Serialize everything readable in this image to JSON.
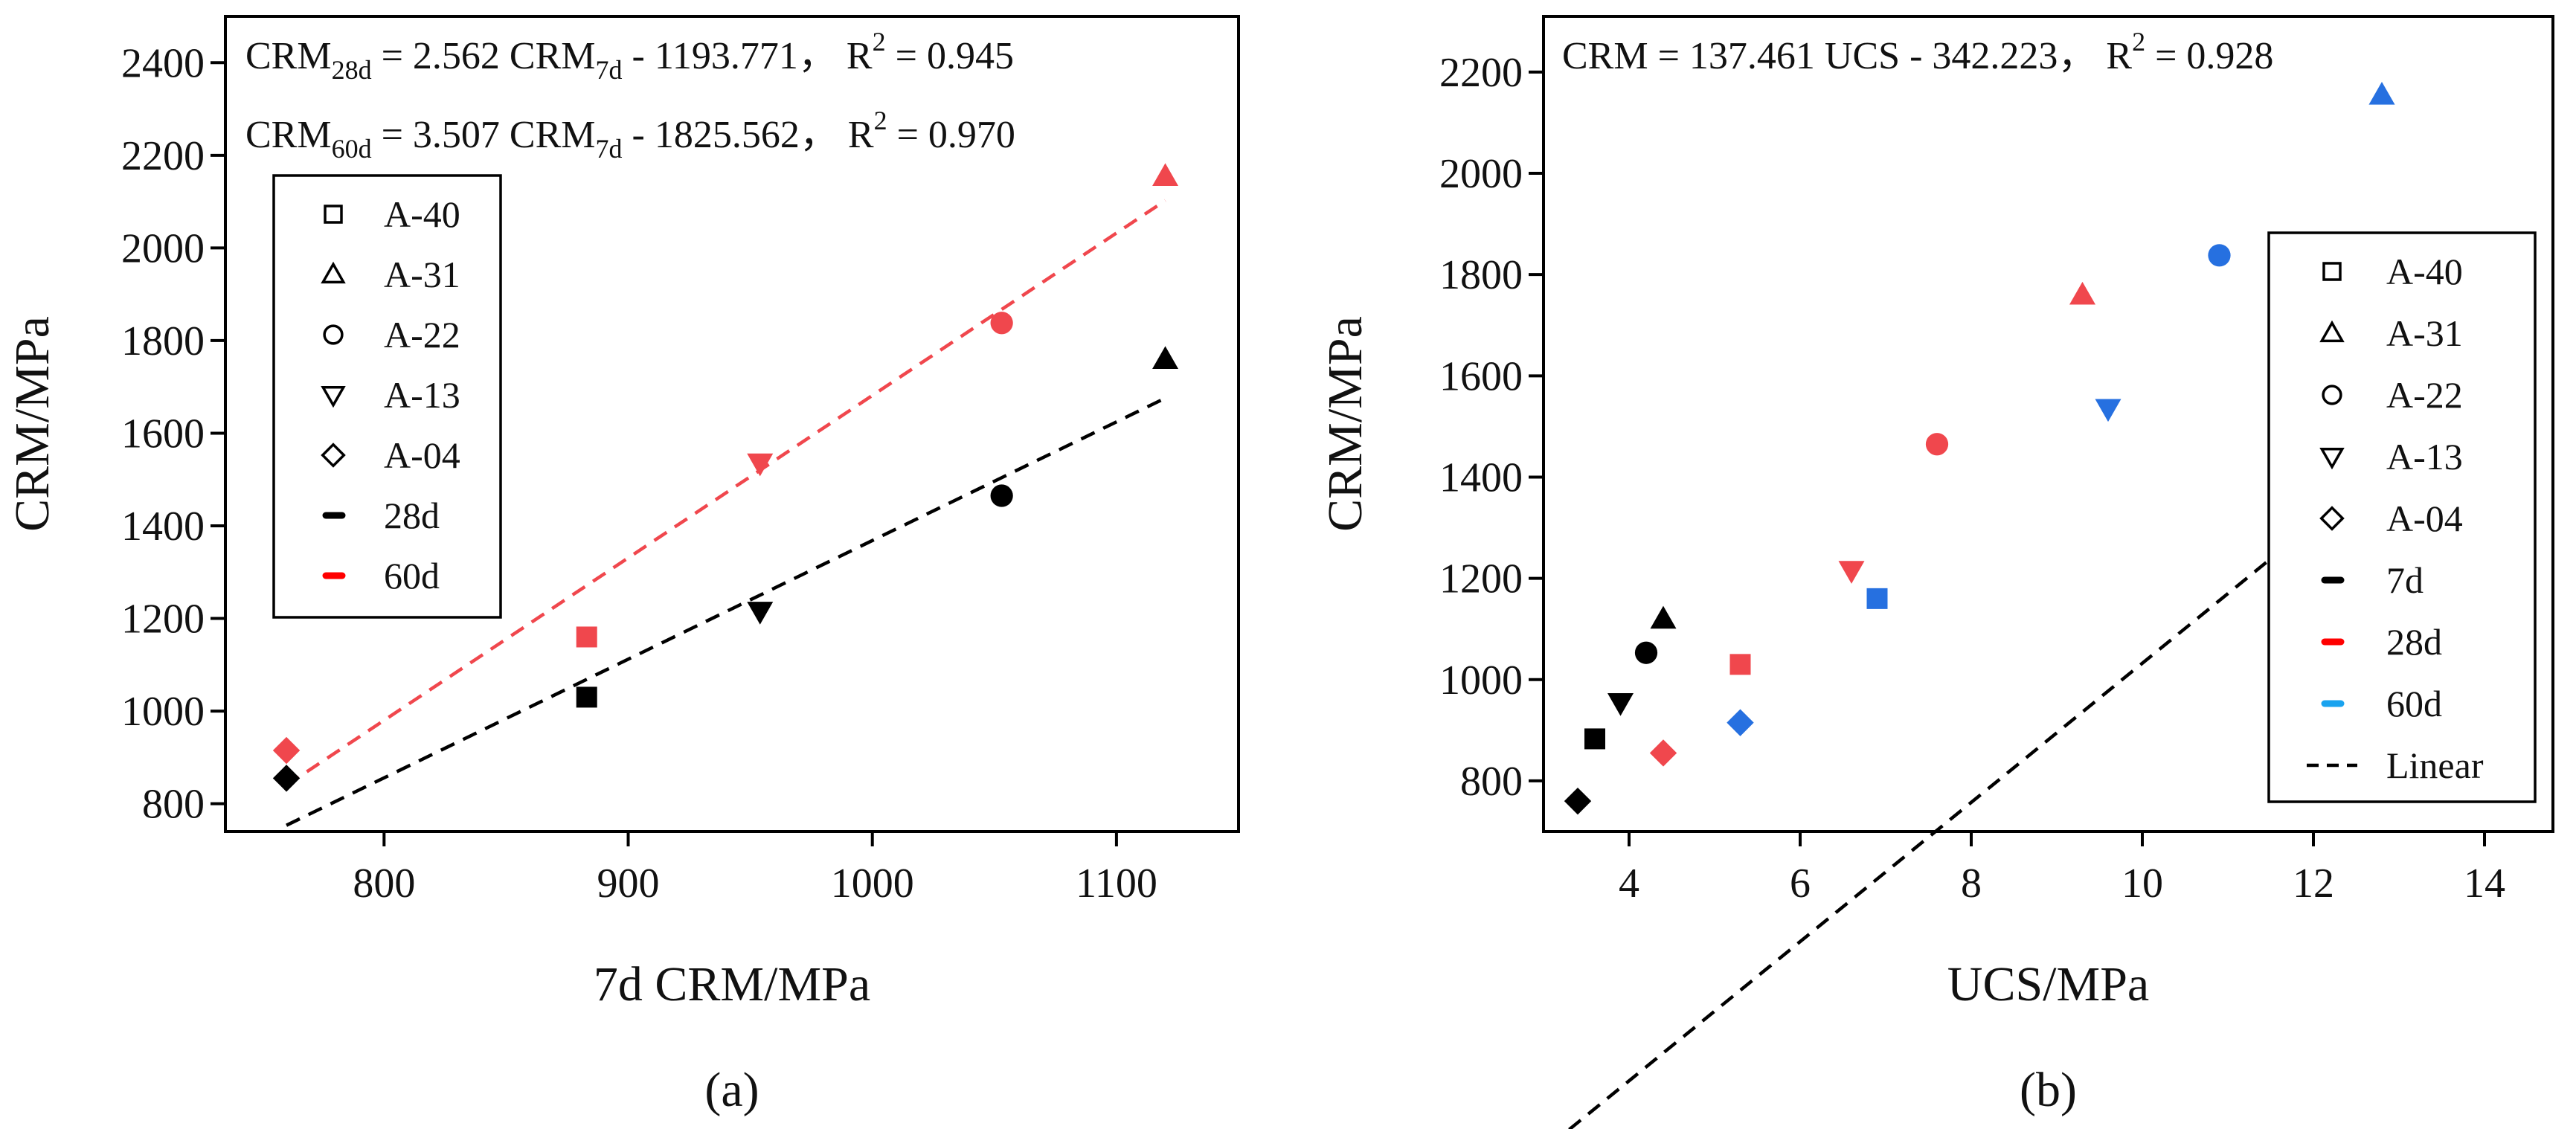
{
  "chart_data": [
    {
      "type": "scatter",
      "panel_label": "(a)",
      "xlabel": "7d CRM/MPa",
      "ylabel": "CRM/MPa",
      "xlim": [
        735,
        1150
      ],
      "ylim": [
        740,
        2500
      ],
      "xticks": [
        800,
        900,
        1000,
        1100
      ],
      "yticks": [
        800,
        1000,
        1200,
        1400,
        1600,
        1800,
        2000,
        2200,
        2400
      ],
      "equations": [
        {
          "main": "CRM",
          "sub": "28d",
          "middle": " = 2.562 CRM",
          "sub2": "7d",
          "tail": " - 1193.771， R",
          "sup": "2",
          "end": " = 0.945"
        },
        {
          "main": "CRM",
          "sub": "60d",
          "middle": " = 3.507 CRM",
          "sub2": "7d",
          "tail": " - 1825.562， R",
          "sup": "2",
          "end": " = 0.970"
        }
      ],
      "legend": {
        "position": "upper-left",
        "items": [
          {
            "label": "A-40",
            "marker": "square"
          },
          {
            "label": "A-31",
            "marker": "triangle-up"
          },
          {
            "label": "A-22",
            "marker": "circle"
          },
          {
            "label": "A-13",
            "marker": "triangle-down"
          },
          {
            "label": "A-04",
            "marker": "diamond"
          },
          {
            "label": "28d",
            "line_color": "#000000"
          },
          {
            "label": "60d",
            "line_color": "#ff0000"
          }
        ]
      },
      "series": [
        {
          "name": "28d",
          "color": "#000000",
          "points": [
            {
              "x": 883,
              "y": 1030,
              "marker": "square"
            },
            {
              "x": 1120,
              "y": 1760,
              "marker": "triangle-up"
            },
            {
              "x": 1053,
              "y": 1465,
              "marker": "circle"
            },
            {
              "x": 954,
              "y": 1215,
              "marker": "triangle-down"
            },
            {
              "x": 760,
              "y": 855,
              "marker": "diamond"
            }
          ]
        },
        {
          "name": "60d",
          "color": "#f0474d",
          "points": [
            {
              "x": 883,
              "y": 1160,
              "marker": "square"
            },
            {
              "x": 1120,
              "y": 2155,
              "marker": "triangle-up"
            },
            {
              "x": 1053,
              "y": 1838,
              "marker": "circle"
            },
            {
              "x": 954,
              "y": 1535,
              "marker": "triangle-down"
            },
            {
              "x": 760,
              "y": 915,
              "marker": "diamond"
            }
          ]
        }
      ],
      "fits": [
        {
          "series": "28d",
          "slope": 2.562,
          "intercept": -1193.771,
          "x_range": [
            760,
            1120
          ],
          "color": "#000000"
        },
        {
          "series": "60d",
          "slope": 3.507,
          "intercept": -1825.562,
          "x_range": [
            760,
            1120
          ],
          "color": "#f0474d"
        }
      ]
    },
    {
      "type": "scatter",
      "panel_label": "(b)",
      "xlabel": "UCS/MPa",
      "ylabel": "CRM/MPa",
      "xlim": [
        3.0,
        14.8
      ],
      "ylim": [
        700,
        2310
      ],
      "xticks": [
        4,
        6,
        8,
        10,
        12,
        14
      ],
      "yticks": [
        800,
        1000,
        1200,
        1400,
        1600,
        1800,
        2000,
        2200
      ],
      "equations": [
        {
          "main": "CRM = 137.461 UCS - 342.223， R",
          "sup": "2",
          "end": " = 0.928"
        }
      ],
      "legend": {
        "position": "lower-right",
        "items": [
          {
            "label": "A-40",
            "marker": "square"
          },
          {
            "label": "A-31",
            "marker": "triangle-up"
          },
          {
            "label": "A-22",
            "marker": "circle"
          },
          {
            "label": "A-13",
            "marker": "triangle-down"
          },
          {
            "label": "A-04",
            "marker": "diamond"
          },
          {
            "label": "7d",
            "line_color": "#000000"
          },
          {
            "label": "28d",
            "line_color": "#ff0000"
          },
          {
            "label": "60d",
            "line_color": "#1aa3ef"
          },
          {
            "label": "Linear",
            "line_style": "dashed"
          }
        ]
      },
      "series": [
        {
          "name": "7d",
          "color": "#000000",
          "points": [
            {
              "x": 3.6,
              "y": 883,
              "marker": "square"
            },
            {
              "x": 4.4,
              "y": 1120,
              "marker": "triangle-up"
            },
            {
              "x": 4.2,
              "y": 1053,
              "marker": "circle"
            },
            {
              "x": 3.9,
              "y": 954,
              "marker": "triangle-down"
            },
            {
              "x": 3.4,
              "y": 760,
              "marker": "diamond"
            }
          ]
        },
        {
          "name": "28d",
          "color": "#f0474d",
          "points": [
            {
              "x": 5.3,
              "y": 1030,
              "marker": "square"
            },
            {
              "x": 9.3,
              "y": 1760,
              "marker": "triangle-up"
            },
            {
              "x": 7.6,
              "y": 1465,
              "marker": "circle"
            },
            {
              "x": 6.6,
              "y": 1215,
              "marker": "triangle-down"
            },
            {
              "x": 4.4,
              "y": 855,
              "marker": "diamond"
            }
          ]
        },
        {
          "name": "60d",
          "color": "#2670e0",
          "points": [
            {
              "x": 6.9,
              "y": 1160,
              "marker": "square"
            },
            {
              "x": 12.8,
              "y": 2155,
              "marker": "triangle-up"
            },
            {
              "x": 10.9,
              "y": 1838,
              "marker": "circle"
            },
            {
              "x": 9.6,
              "y": 1535,
              "marker": "triangle-down"
            },
            {
              "x": 5.3,
              "y": 915,
              "marker": "diamond"
            }
          ]
        }
      ],
      "fits": [
        {
          "series": "Linear",
          "slope": 137.461,
          "intercept": -342.223,
          "x_range": [
            3.3,
            12.8
          ],
          "color": "#000000"
        }
      ]
    }
  ]
}
